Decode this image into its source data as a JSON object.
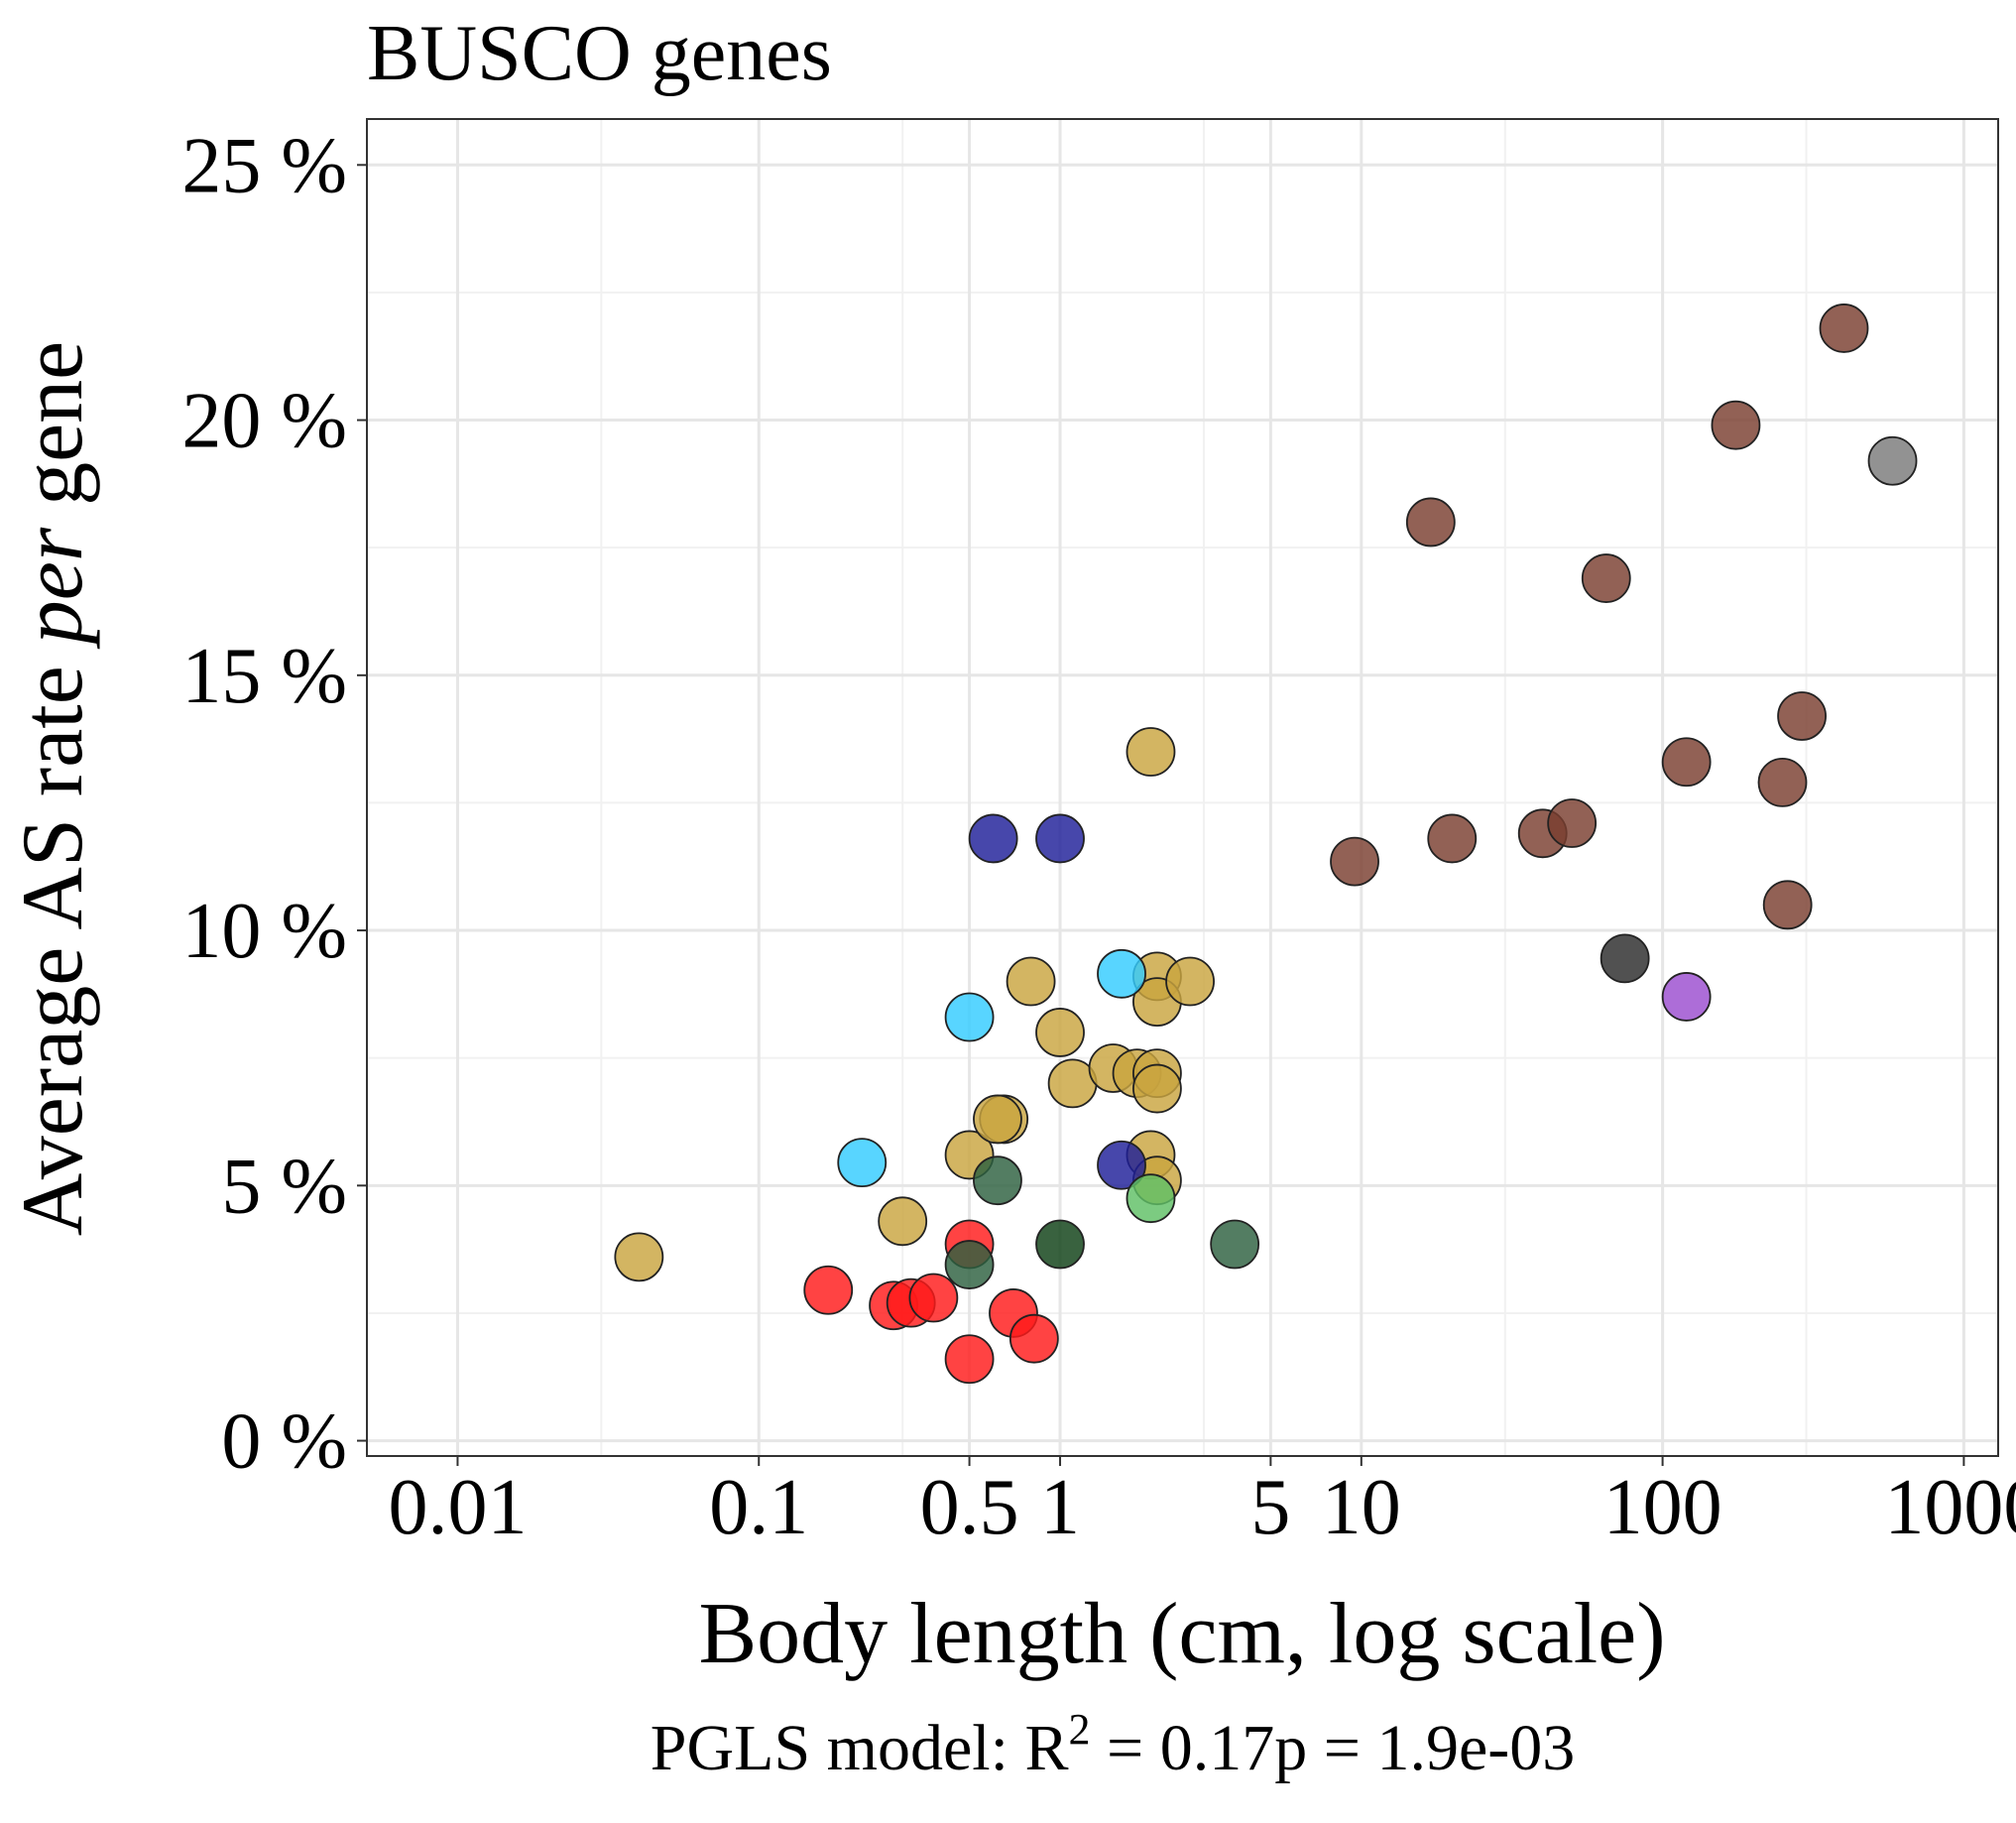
{
  "chart_data": {
    "type": "scatter",
    "title": "BUSCO genes",
    "xlabel": "Body length (cm, log scale)",
    "ylabel": {
      "before": "Average AS rate ",
      "italic": "per",
      "after": " gene"
    },
    "x_scale": "log10",
    "xlim": [
      0.005,
      1300
    ],
    "ylim": [
      -0.3,
      25.9
    ],
    "x_ticks": [
      {
        "value": 0.01,
        "label": "0.01"
      },
      {
        "value": 0.1,
        "label": "0.1"
      },
      {
        "value": 0.5,
        "label": "0.5"
      },
      {
        "value": 1,
        "label": "1"
      },
      {
        "value": 5,
        "label": "5"
      },
      {
        "value": 10,
        "label": "10"
      },
      {
        "value": 100,
        "label": "100"
      },
      {
        "value": 1000,
        "label": "1000"
      }
    ],
    "x_minor_gridlines": [
      0.03,
      0.3,
      3,
      30,
      300
    ],
    "y_ticks": [
      {
        "value": 0,
        "label": "0 %"
      },
      {
        "value": 5,
        "label": "5 %"
      },
      {
        "value": 10,
        "label": "10 %"
      },
      {
        "value": 15,
        "label": "15 %"
      },
      {
        "value": 20,
        "label": "20 %"
      },
      {
        "value": 25,
        "label": "25 %"
      }
    ],
    "y_minor_gridlines": [
      2.5,
      7.5,
      12.5,
      17.5,
      22.5
    ],
    "grid": true,
    "legend": "none",
    "annotation": {
      "prefix": "PGLS model: R",
      "superscript": "2",
      "r2_text": " = 0.17",
      "p_text": "p = 1.9e-03"
    },
    "series": [
      {
        "color": "#C9A53F",
        "points": [
          [
            0.04,
            3.6
          ],
          [
            0.3,
            4.3
          ],
          [
            0.5,
            5.6
          ],
          [
            0.65,
            6.3
          ],
          [
            0.62,
            6.3
          ],
          [
            0.8,
            9.0
          ],
          [
            1.0,
            8.0
          ],
          [
            1.1,
            7.0
          ],
          [
            1.5,
            7.3
          ],
          [
            1.8,
            7.2
          ],
          [
            2.0,
            13.5
          ],
          [
            2.1,
            7.2
          ],
          [
            2.1,
            6.9
          ],
          [
            2.0,
            5.6
          ],
          [
            2.1,
            5.1
          ],
          [
            2.1,
            9.1
          ],
          [
            2.1,
            8.6
          ],
          [
            2.7,
            9.0
          ]
        ]
      },
      {
        "color": "#FF1A1A",
        "points": [
          [
            0.17,
            2.95
          ],
          [
            0.28,
            2.65
          ],
          [
            0.32,
            2.7
          ],
          [
            0.38,
            2.8
          ],
          [
            0.5,
            3.85
          ],
          [
            0.5,
            1.6
          ],
          [
            0.7,
            2.5
          ],
          [
            0.82,
            2.0
          ]
        ]
      },
      {
        "color": "#33CCFF",
        "points": [
          [
            0.22,
            5.45
          ],
          [
            0.5,
            8.3
          ],
          [
            1.6,
            9.15
          ]
        ]
      },
      {
        "color": "#1F1F99",
        "points": [
          [
            0.6,
            11.8
          ],
          [
            1.0,
            11.8
          ],
          [
            1.6,
            5.4
          ]
        ]
      },
      {
        "color": "#2D6040",
        "points": [
          [
            0.5,
            3.45
          ],
          [
            0.62,
            5.1
          ],
          [
            3.8,
            3.85
          ]
        ]
      },
      {
        "color": "#0E4015",
        "points": [
          [
            1.0,
            3.85
          ]
        ]
      },
      {
        "color": "#5FBF65",
        "points": [
          [
            2.0,
            4.75
          ]
        ]
      },
      {
        "color": "#7A3E30",
        "points": [
          [
            9.5,
            11.35
          ],
          [
            17,
            18.0
          ],
          [
            20,
            11.8
          ],
          [
            40,
            11.9
          ],
          [
            50,
            12.1
          ],
          [
            65,
            16.9
          ],
          [
            120,
            13.3
          ],
          [
            175,
            19.9
          ],
          [
            250,
            12.9
          ],
          [
            260,
            10.5
          ],
          [
            290,
            14.2
          ],
          [
            400,
            21.8
          ]
        ]
      },
      {
        "color": "#2B2B2B",
        "points": [
          [
            75,
            9.45
          ]
        ]
      },
      {
        "color": "#9B4DD0",
        "points": [
          [
            120,
            8.7
          ]
        ]
      },
      {
        "color": "#7A7A7A",
        "points": [
          [
            580,
            19.2
          ]
        ]
      }
    ]
  }
}
